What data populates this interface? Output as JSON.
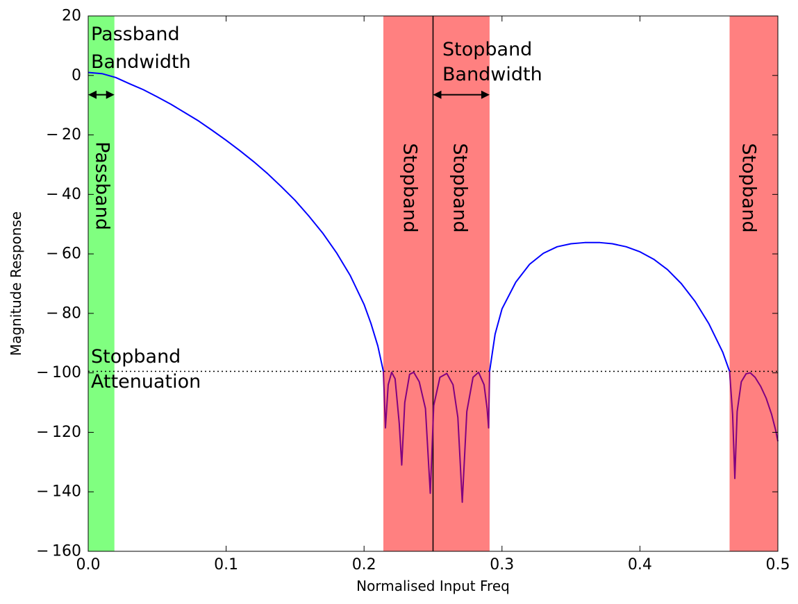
{
  "chart_data": {
    "type": "line",
    "title": "",
    "xlabel": "Normalised Input Freq",
    "ylabel": "Magnitude Response",
    "xlim": [
      0.0,
      0.5
    ],
    "ylim": [
      -160,
      20
    ],
    "grid": false,
    "x_ticks": [
      0.0,
      0.1,
      0.2,
      0.3,
      0.4,
      0.5
    ],
    "x_tick_labels": [
      "0.0",
      "0.1",
      "0.2",
      "0.3",
      "0.4",
      "0.5"
    ],
    "y_ticks": [
      20,
      0,
      -20,
      -40,
      -60,
      -80,
      -100,
      -120,
      -140,
      -160
    ],
    "y_tick_labels": [
      "20",
      "0",
      "− 20",
      "− 40",
      "− 60",
      "− 80",
      "− 100",
      "− 120",
      "− 140",
      "− 160"
    ],
    "passband": {
      "x_range": [
        0.0,
        0.019
      ],
      "color": "#80ff80",
      "label": "Passband"
    },
    "stopbands": [
      {
        "x_range": [
          0.214,
          0.25
        ],
        "color": "#ff8080",
        "label": "Stopband"
      },
      {
        "x_range": [
          0.25,
          0.291
        ],
        "color": "#ff8080",
        "label": "Stopband"
      },
      {
        "x_range": [
          0.465,
          0.5
        ],
        "color": "#ff8080",
        "label": "Stopband"
      }
    ],
    "vertical_line_x": 0.25,
    "attenuation_level": -99.5,
    "annotations": {
      "passband_bandwidth": {
        "lines": [
          "Passband",
          "Bandwidth"
        ],
        "arrow_x": [
          0.0,
          0.019
        ],
        "arrow_y": -6.5
      },
      "stopband_bandwidth": {
        "lines": [
          "Stopband",
          "Bandwidth"
        ],
        "arrow_x": [
          0.25,
          0.291
        ],
        "arrow_y": -6.5
      },
      "stopband_attenuation": {
        "lines": [
          "Stopband",
          "Attenuation"
        ]
      }
    },
    "series": [
      {
        "color": "#0000ff",
        "points": [
          [
            0.0,
            1.0
          ],
          [
            0.01,
            0.6
          ],
          [
            0.02,
            -0.7
          ],
          [
            0.03,
            -2.8
          ],
          [
            0.04,
            -4.8
          ],
          [
            0.05,
            -7.2
          ],
          [
            0.06,
            -9.7
          ],
          [
            0.07,
            -12.5
          ],
          [
            0.08,
            -15.3
          ],
          [
            0.09,
            -18.5
          ],
          [
            0.1,
            -21.8
          ],
          [
            0.11,
            -25.3
          ],
          [
            0.12,
            -29.0
          ],
          [
            0.13,
            -33.0
          ],
          [
            0.14,
            -37.4
          ],
          [
            0.15,
            -42.0
          ],
          [
            0.16,
            -47.3
          ],
          [
            0.17,
            -53.0
          ],
          [
            0.18,
            -59.6
          ],
          [
            0.19,
            -67.3
          ],
          [
            0.2,
            -77.0
          ],
          [
            0.205,
            -83.4
          ],
          [
            0.21,
            -91.0
          ],
          [
            0.214,
            -99.5
          ]
        ]
      },
      {
        "color": "#800080",
        "points": [
          [
            0.214,
            -99.5
          ],
          [
            0.2155,
            -118.5
          ],
          [
            0.2175,
            -104.0
          ],
          [
            0.22,
            -99.8
          ],
          [
            0.2225,
            -102.0
          ],
          [
            0.2255,
            -117.0
          ],
          [
            0.2273,
            -131.0
          ],
          [
            0.2295,
            -110.0
          ],
          [
            0.233,
            -100.5
          ],
          [
            0.236,
            -99.8
          ],
          [
            0.24,
            -103.0
          ],
          [
            0.2445,
            -112.0
          ],
          [
            0.248,
            -140.5
          ],
          [
            0.2505,
            -111.0
          ],
          [
            0.255,
            -101.5
          ],
          [
            0.26,
            -100.2
          ],
          [
            0.2645,
            -104.0
          ],
          [
            0.268,
            -115.0
          ],
          [
            0.2712,
            -143.5
          ],
          [
            0.2745,
            -113.0
          ],
          [
            0.279,
            -101.5
          ],
          [
            0.283,
            -99.8
          ],
          [
            0.287,
            -104.0
          ],
          [
            0.2892,
            -112.0
          ],
          [
            0.2903,
            -118.5
          ],
          [
            0.291,
            -99.5
          ]
        ]
      },
      {
        "color": "#0000ff",
        "points": [
          [
            0.291,
            -99.5
          ],
          [
            0.295,
            -87.0
          ],
          [
            0.3,
            -78.5
          ],
          [
            0.31,
            -69.5
          ],
          [
            0.32,
            -63.5
          ],
          [
            0.33,
            -59.8
          ],
          [
            0.34,
            -57.6
          ],
          [
            0.35,
            -56.6
          ],
          [
            0.36,
            -56.2
          ],
          [
            0.371,
            -56.2
          ],
          [
            0.38,
            -56.6
          ],
          [
            0.39,
            -57.6
          ],
          [
            0.4,
            -59.3
          ],
          [
            0.41,
            -61.8
          ],
          [
            0.42,
            -65.3
          ],
          [
            0.43,
            -70.0
          ],
          [
            0.44,
            -76.0
          ],
          [
            0.45,
            -83.5
          ],
          [
            0.46,
            -93.0
          ],
          [
            0.465,
            -99.5
          ]
        ]
      },
      {
        "color": "#800080",
        "points": [
          [
            0.465,
            -99.5
          ],
          [
            0.4672,
            -114.0
          ],
          [
            0.4688,
            -135.5
          ],
          [
            0.4705,
            -113.0
          ],
          [
            0.4735,
            -103.0
          ],
          [
            0.477,
            -100.3
          ],
          [
            0.48,
            -100.0
          ],
          [
            0.4835,
            -101.5
          ],
          [
            0.4875,
            -104.5
          ],
          [
            0.4915,
            -108.5
          ],
          [
            0.4955,
            -114.0
          ],
          [
            0.4985,
            -119.5
          ],
          [
            0.5,
            -123.0
          ]
        ]
      }
    ]
  }
}
